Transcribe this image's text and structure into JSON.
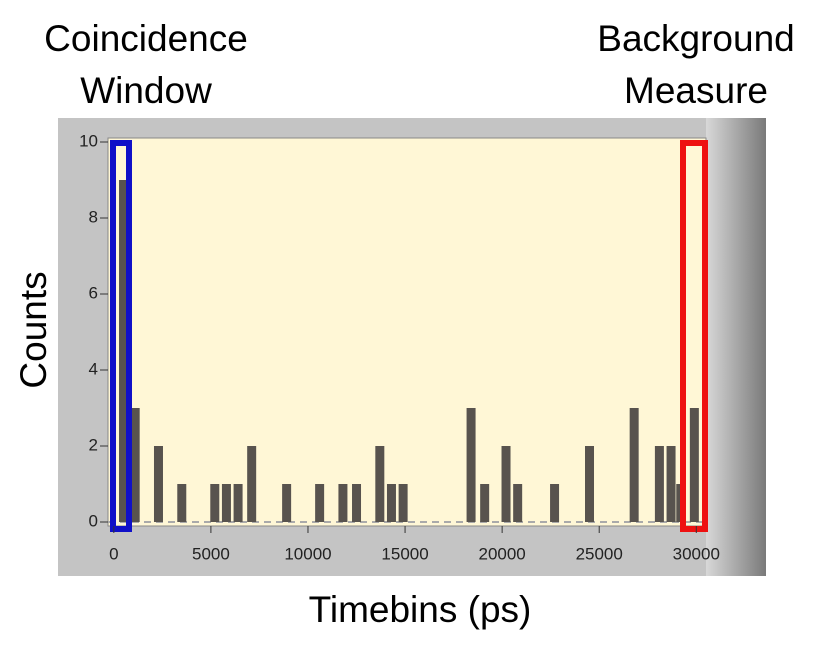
{
  "chart_data": {
    "type": "bar",
    "annotations": [
      "Coincidence Window",
      "Background Measure"
    ],
    "xlabel": "Timebins (ps)",
    "ylabel": "Counts",
    "x": [
      500,
      1100,
      2300,
      3500,
      5200,
      5800,
      6400,
      7100,
      8900,
      10600,
      11800,
      12500,
      13700,
      14300,
      14900,
      18400,
      19100,
      20200,
      20800,
      22700,
      24500,
      26800,
      28100,
      28700,
      29200,
      29900
    ],
    "values": [
      9,
      3,
      2,
      1,
      1,
      1,
      1,
      2,
      1,
      1,
      1,
      1,
      2,
      1,
      1,
      3,
      1,
      2,
      1,
      1,
      2,
      3,
      2,
      2,
      1,
      3
    ],
    "color": "#58534e",
    "xlim": [
      -300,
      30500
    ],
    "ylim": [
      0,
      10
    ],
    "xticks": [
      0,
      5000,
      10000,
      15000,
      20000,
      25000,
      30000
    ],
    "yticks": [
      0,
      2,
      4,
      6,
      8,
      10
    ]
  }
}
